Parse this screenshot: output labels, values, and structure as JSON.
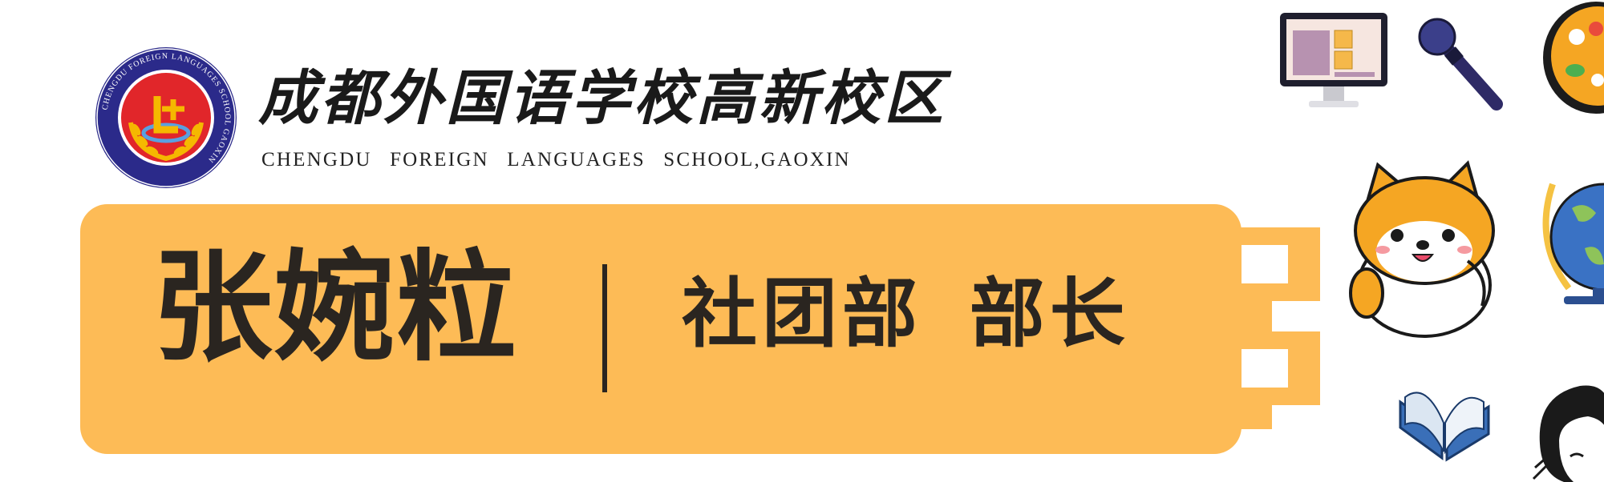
{
  "header": {
    "school_name_cn": "成都外国语学校高新校区",
    "school_name_en": "CHENGDU FOREIGN LANGUAGES SCHOOL,GAOXIN",
    "logo_ring_text": "CHENGDU FOREIGN LANGUAGES SCHOOL GAOXIN"
  },
  "banner": {
    "name": "张婉粒",
    "role": "社团部 部长"
  },
  "colors": {
    "banner": "#fdbb56",
    "text_dark": "#2a2520",
    "logo_navy": "#2b2a8a",
    "logo_red": "#e1262a",
    "logo_gold": "#f5b800"
  },
  "icons": [
    "computer-monitor-icon",
    "microphone-icon",
    "paint-palette-icon",
    "shiba-dog-icon",
    "globe-icon",
    "open-book-icon",
    "cartoon-girl-icon"
  ]
}
